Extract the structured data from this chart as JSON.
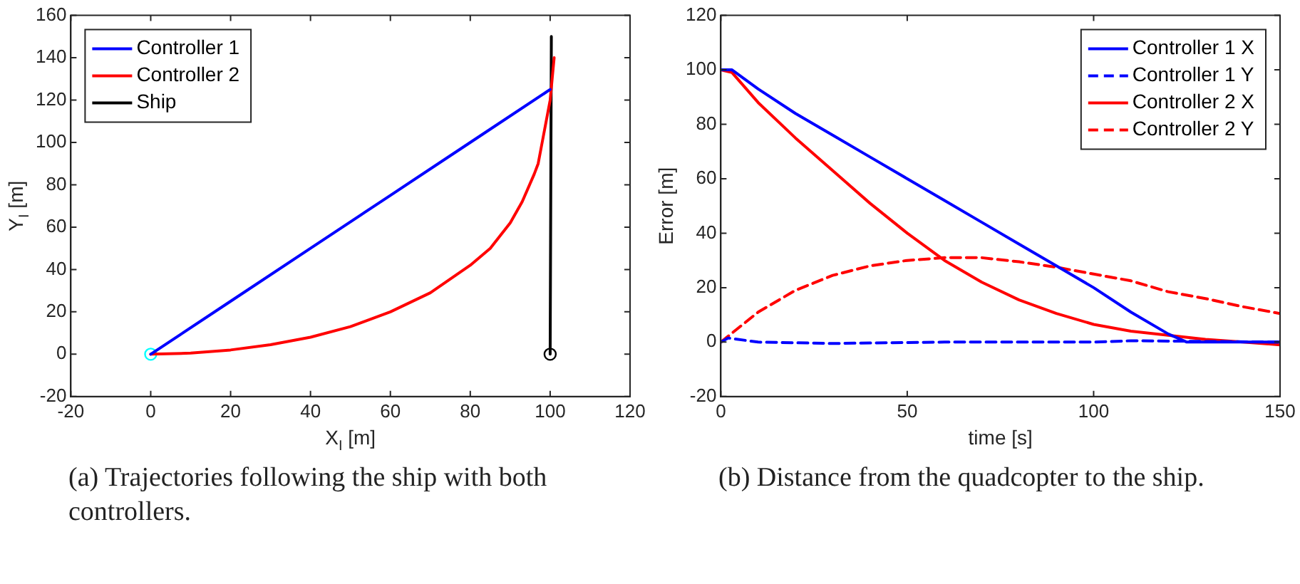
{
  "chart_data": [
    {
      "type": "line",
      "xlabel": "X$_{I}$ [m]",
      "ylabel": "Y$_{I}$ [m]",
      "xlim": [
        -20,
        120
      ],
      "xticks": [
        -20,
        0,
        20,
        40,
        60,
        80,
        100,
        120
      ],
      "ylim": [
        -20,
        160
      ],
      "yticks": [
        -20,
        0,
        20,
        40,
        60,
        80,
        100,
        120,
        140,
        160
      ],
      "grid": false,
      "legend": "top left",
      "marker": "none",
      "annotations": [
        "(a) Trajectories following the ship with both controllers."
      ],
      "series": [
        {
          "name": "Controller 1",
          "color": "#0000ff",
          "x": [
            0,
            20,
            40,
            60,
            80,
            100
          ],
          "values": [
            0,
            25,
            50,
            75,
            100,
            125
          ]
        },
        {
          "name": "Controller 2",
          "color": "#ff0000",
          "x": [
            0,
            10,
            20,
            30,
            40,
            50,
            60,
            70,
            80,
            85,
            90,
            93,
            96,
            97,
            98,
            99,
            100,
            100.5,
            101
          ],
          "values": [
            0,
            0.5,
            2,
            4.5,
            8,
            13,
            20,
            29,
            42,
            50,
            62,
            72,
            85,
            90,
            100,
            110,
            120,
            130,
            140
          ]
        },
        {
          "name": "Ship",
          "color": "#000000",
          "x": [
            100,
            100.3
          ],
          "values": [
            0,
            150
          ]
        },
        {
          "type": "scatter",
          "marker": "circle",
          "color": "#00ffff",
          "x": [
            0
          ],
          "values": [
            0
          ]
        },
        {
          "type": "scatter",
          "marker": "circle",
          "color": "#000000",
          "x": [
            100
          ],
          "values": [
            0
          ]
        }
      ]
    },
    {
      "type": "line",
      "xlabel": "time [s]",
      "ylabel": "Error [m]",
      "xlim": [
        0,
        150
      ],
      "xticks": [
        0,
        50,
        100,
        150
      ],
      "ylim": [
        -20,
        120
      ],
      "yticks": [
        -20,
        0,
        20,
        40,
        60,
        80,
        100,
        120
      ],
      "grid": false,
      "legend": "top right",
      "marker": "none",
      "annotations": [
        "(b) Distance from the quadcopter to the ship."
      ],
      "series": [
        {
          "name": "Controller 1 X",
          "color": "#0000ff",
          "line_style": "solid",
          "x": [
            0,
            3,
            10,
            20,
            30,
            40,
            50,
            60,
            70,
            80,
            90,
            100,
            110,
            120,
            125,
            150
          ],
          "values": [
            100,
            100,
            93,
            84,
            76,
            68,
            60,
            52,
            44,
            36,
            28,
            20,
            11,
            3,
            0,
            0
          ]
        },
        {
          "name": "Controller 1 Y",
          "color": "#0000ff",
          "line_style": "dashed",
          "x": [
            0,
            2,
            10,
            30,
            60,
            100,
            110,
            150
          ],
          "values": [
            0,
            1.5,
            0,
            -0.5,
            0,
            0,
            0.5,
            0
          ]
        },
        {
          "name": "Controller 2 X",
          "color": "#ff0000",
          "line_style": "solid",
          "x": [
            0,
            3,
            10,
            20,
            30,
            40,
            50,
            60,
            70,
            80,
            90,
            100,
            110,
            120,
            130,
            140,
            150
          ],
          "values": [
            100,
            99,
            88,
            75,
            63,
            51,
            40,
            30,
            22,
            15.5,
            10.5,
            6.5,
            4,
            2.5,
            1,
            0,
            -1
          ]
        },
        {
          "name": "Controller 2 Y",
          "color": "#ff0000",
          "line_style": "dashed",
          "x": [
            0,
            10,
            20,
            30,
            40,
            50,
            60,
            70,
            80,
            90,
            100,
            110,
            120,
            130,
            140,
            150
          ],
          "values": [
            0,
            11,
            19,
            24.5,
            28,
            30,
            31,
            31,
            29.5,
            27.5,
            25,
            22.5,
            18.5,
            16,
            13,
            10.5
          ]
        }
      ]
    }
  ]
}
